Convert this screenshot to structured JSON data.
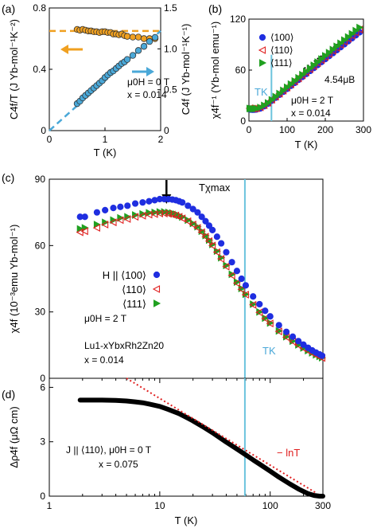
{
  "chart_data": [
    {
      "panel_label": "(a)",
      "type": "scatter",
      "xlabel": "T (K)",
      "ylabel_left": "C4f/T (J Yb-mol⁻¹K⁻²)",
      "ylabel_right": "C4f (J Yb-mol⁻¹K⁻¹)",
      "xlim": [
        0,
        2
      ],
      "ylim_left": [
        0,
        0.8
      ],
      "ylim_right": [
        0,
        1.5
      ],
      "xticks": [
        "0",
        "1",
        "2"
      ],
      "yticks_left": [
        "0",
        "0.4",
        "0.8"
      ],
      "yticks_right": [
        "0",
        "0.5",
        "1.0",
        "1.5"
      ],
      "annotations": [
        "μ0H = 0 T",
        "x = 0.014"
      ],
      "series": [
        {
          "axis": "left",
          "color": "#f0a020",
          "x": [
            0.5,
            0.55,
            0.6,
            0.65,
            0.7,
            0.75,
            0.8,
            0.85,
            0.9,
            0.95,
            1.0,
            1.05,
            1.1,
            1.15,
            1.2,
            1.25,
            1.3,
            1.35,
            1.4,
            1.5,
            1.6,
            1.7,
            1.8,
            1.9
          ],
          "y": [
            0.66,
            0.655,
            0.66,
            0.655,
            0.65,
            0.65,
            0.645,
            0.645,
            0.64,
            0.645,
            0.645,
            0.64,
            0.64,
            0.63,
            0.63,
            0.625,
            0.63,
            0.62,
            0.615,
            0.61,
            0.61,
            0.6,
            0.6,
            0.6
          ]
        },
        {
          "axis": "right",
          "color": "#4aa8d8",
          "x": [
            0.5,
            0.55,
            0.6,
            0.65,
            0.7,
            0.75,
            0.8,
            0.85,
            0.9,
            0.95,
            1.0,
            1.05,
            1.1,
            1.15,
            1.2,
            1.25,
            1.3,
            1.35,
            1.4,
            1.5,
            1.6,
            1.7,
            1.8,
            1.9
          ],
          "y": [
            0.33,
            0.36,
            0.4,
            0.43,
            0.46,
            0.49,
            0.52,
            0.55,
            0.58,
            0.61,
            0.65,
            0.68,
            0.71,
            0.73,
            0.76,
            0.79,
            0.82,
            0.84,
            0.87,
            0.92,
            0.98,
            1.03,
            1.09,
            1.14
          ]
        }
      ],
      "fit_lines": [
        {
          "axis": "left",
          "style": "dashed",
          "color": "#f0a020",
          "x": [
            0,
            2
          ],
          "y": [
            0.65,
            0.65
          ]
        },
        {
          "axis": "right",
          "style": "dashed",
          "color": "#4aa8d8",
          "x": [
            0,
            2
          ],
          "y": [
            0,
            1.22
          ]
        }
      ]
    },
    {
      "panel_label": "(b)",
      "type": "scatter",
      "xlabel": "T (K)",
      "ylabel": "χ4f⁻¹ (Yb-mol emu⁻¹)",
      "xlim": [
        0,
        300
      ],
      "ylim": [
        0,
        120
      ],
      "xticks": [
        "0",
        "100",
        "200",
        "300"
      ],
      "yticks": [
        "0",
        "60",
        "120"
      ],
      "vline": {
        "x": 59,
        "label": "TK",
        "color": "#6cc4dd"
      },
      "annotations": [
        "4.54μB",
        "μ0H = 2 T",
        "x = 0.014"
      ],
      "legend": [
        "⟨100⟩",
        "⟨110⟩",
        "⟨111⟩"
      ],
      "series": [
        {
          "name": "⟨100⟩",
          "color": "#1f2ee0",
          "marker": "circle",
          "x": [
            2,
            5,
            10,
            15,
            20,
            30,
            40,
            50,
            60,
            70,
            80,
            90,
            100,
            110,
            120,
            130,
            140,
            150,
            160,
            170,
            180,
            190,
            200,
            210,
            220,
            230,
            240,
            250,
            260,
            270,
            280,
            290
          ],
          "y": [
            13.7,
            13.5,
            13.3,
            13.4,
            13.7,
            14.9,
            17.5,
            20.5,
            24,
            27.5,
            31,
            34.5,
            38,
            41.5,
            45,
            48.5,
            52,
            55.5,
            59,
            62.5,
            66,
            69.5,
            73,
            76.5,
            80,
            83.5,
            87,
            90.5,
            94,
            97.5,
            101,
            104.5
          ]
        },
        {
          "name": "⟨110⟩",
          "color": "#e02020",
          "marker": "triangle-left",
          "x": [
            2,
            5,
            10,
            15,
            20,
            30,
            40,
            50,
            60,
            70,
            80,
            90,
            100,
            110,
            120,
            130,
            140,
            150,
            160,
            170,
            180,
            190,
            200,
            210,
            220,
            230,
            240,
            250,
            260,
            270,
            280,
            290
          ],
          "y": [
            15,
            14.8,
            14.6,
            14.7,
            15,
            16.2,
            18.5,
            21.5,
            25,
            28.6,
            32.2,
            35.8,
            39.4,
            43,
            46.6,
            50.2,
            53.8,
            57.4,
            61,
            64.6,
            68.2,
            71.8,
            75.4,
            79,
            82.6,
            86.2,
            89.8,
            93.4,
            97,
            100.6,
            104.2,
            107.8
          ]
        },
        {
          "name": "⟨111⟩",
          "color": "#20a020",
          "marker": "triangle-right",
          "x": [
            2,
            5,
            10,
            15,
            20,
            30,
            40,
            50,
            60,
            70,
            80,
            90,
            100,
            110,
            120,
            130,
            140,
            150,
            160,
            170,
            180,
            190,
            200,
            210,
            220,
            230,
            240,
            250,
            260,
            270,
            280,
            290
          ],
          "y": [
            14.8,
            14.6,
            14.4,
            14.5,
            14.8,
            16,
            18.4,
            21.4,
            25,
            28.7,
            32.4,
            36.1,
            39.8,
            43.5,
            47.2,
            50.9,
            54.6,
            58.3,
            62,
            65.7,
            69.4,
            73.1,
            76.8,
            80.5,
            84.2,
            87.9,
            91.6,
            95.3,
            99,
            102.7,
            106.4,
            110.1
          ]
        }
      ]
    },
    {
      "panel_label": "(c)",
      "type": "scatter",
      "xlabel": "",
      "ylabel": "χ4f (10⁻³emu Yb-mol⁻¹)",
      "xscale": "log",
      "xlim": [
        1,
        300
      ],
      "ylim": [
        0,
        90
      ],
      "yticks": [
        "0",
        "30",
        "60",
        "90"
      ],
      "vline": {
        "x": 59,
        "label": "TK",
        "color": "#6cc4dd"
      },
      "arrow_label": "Tχmax",
      "arrow_x": 11.5,
      "annotations": [
        "μ0H = 2 T",
        "Lu1-xYbxRh2Zn20",
        "x = 0.014"
      ],
      "legend": [
        "H || ⟨100⟩",
        "⟨110⟩",
        "⟨111⟩"
      ],
      "series": [
        {
          "name": "H || ⟨100⟩",
          "color": "#1f2ee0",
          "marker": "circle",
          "x": [
            1.9,
            2.1,
            2.7,
            3.2,
            3.8,
            4.4,
            5.1,
            6,
            7,
            8,
            9,
            10,
            11,
            12,
            13,
            14,
            15,
            16,
            18,
            20,
            22,
            24,
            26,
            28,
            30,
            33,
            36,
            40,
            45,
            50,
            55,
            60,
            70,
            80,
            90,
            100,
            120,
            140,
            160,
            180,
            200,
            220,
            240,
            260,
            280,
            295
          ],
          "y": [
            73,
            73,
            75,
            76,
            77,
            77.5,
            78,
            79,
            79.5,
            80,
            80.5,
            81,
            81,
            81,
            80.8,
            80.5,
            80,
            79.5,
            78,
            76.5,
            75,
            73,
            71,
            69,
            67,
            64,
            61,
            57,
            52.5,
            48.5,
            45,
            42,
            37,
            33.5,
            30.5,
            28,
            24,
            21,
            18.8,
            16.8,
            15.2,
            13.8,
            12.6,
            11.6,
            10.8,
            10.2
          ]
        },
        {
          "name": "⟨110⟩",
          "color": "#e02020",
          "marker": "triangle-left",
          "x": [
            1.9,
            2.1,
            2.7,
            3.2,
            3.8,
            4.4,
            5.1,
            6,
            7,
            8,
            9,
            10,
            11,
            12,
            13,
            14,
            15,
            16,
            18,
            20,
            22,
            24,
            26,
            28,
            30,
            33,
            36,
            40,
            45,
            50,
            55,
            60,
            70,
            80,
            90,
            100,
            120,
            140,
            160,
            180,
            200,
            220,
            240,
            260,
            280,
            295
          ],
          "y": [
            66,
            66.5,
            68,
            69.5,
            70.5,
            71.5,
            72,
            73,
            73.5,
            74,
            74.2,
            74.5,
            74.5,
            74.3,
            74,
            73.6,
            73,
            72.3,
            71,
            69.5,
            68,
            66,
            64,
            62,
            60,
            57,
            54,
            50.5,
            46.5,
            43,
            40.2,
            37.8,
            33.2,
            29.8,
            27,
            24.8,
            21.2,
            18.6,
            16.6,
            15,
            13.6,
            12.4,
            11.4,
            10.5,
            9.8,
            9.2
          ]
        },
        {
          "name": "⟨111⟩",
          "color": "#20a020",
          "marker": "triangle-right",
          "x": [
            1.9,
            2.1,
            2.7,
            3.2,
            3.8,
            4.4,
            5.1,
            6,
            7,
            8,
            9,
            10,
            11,
            12,
            13,
            14,
            15,
            16,
            18,
            20,
            22,
            24,
            26,
            28,
            30,
            33,
            36,
            40,
            45,
            50,
            55,
            60,
            70,
            80,
            90,
            100,
            120,
            140,
            160,
            180,
            200,
            220,
            240,
            260,
            280,
            295
          ],
          "y": [
            67.5,
            68,
            69.5,
            70.5,
            71.5,
            72.5,
            73,
            73.8,
            74.3,
            74.8,
            75,
            75.2,
            75.2,
            75,
            74.7,
            74.2,
            73.6,
            72.9,
            71.5,
            70,
            68.5,
            66.5,
            64.5,
            62.5,
            60.5,
            57.5,
            54.5,
            51,
            47,
            43.5,
            40.6,
            38,
            33.5,
            30,
            27.2,
            25,
            21.4,
            18.8,
            16.8,
            15.1,
            13.7,
            12.5,
            11.5,
            10.6,
            9.9,
            9.3
          ]
        }
      ]
    },
    {
      "panel_label": "(d)",
      "type": "line",
      "xlabel": "T (K)",
      "ylabel": "Δρ4f (μΩ cm)",
      "xscale": "log",
      "xlim": [
        1,
        300
      ],
      "ylim": [
        0,
        6.5
      ],
      "xticks": [
        "1",
        "10",
        "100",
        "300"
      ],
      "yticks": [
        "0",
        "3",
        "6"
      ],
      "vline": {
        "x": 59,
        "color": "#6cc4dd"
      },
      "annotations": [
        "J || ⟨110⟩,  μ0H = 0 T",
        "x = 0.075",
        "− lnT"
      ],
      "series": [
        {
          "name": "Δρ4f",
          "color": "#000000",
          "x": [
            1.9,
            2.5,
            3,
            4,
            5,
            6,
            7,
            8,
            10,
            12,
            15,
            18,
            20,
            25,
            30,
            40,
            50,
            60,
            70,
            80,
            100,
            120,
            150,
            180,
            200,
            220,
            250,
            280,
            300
          ],
          "y": [
            5.3,
            5.3,
            5.3,
            5.28,
            5.25,
            5.2,
            5.15,
            5.08,
            4.95,
            4.78,
            4.55,
            4.3,
            4.15,
            3.8,
            3.5,
            2.98,
            2.6,
            2.28,
            2.0,
            1.77,
            1.38,
            1.05,
            0.68,
            0.4,
            0.26,
            0.14,
            0.04,
            0.0,
            0.0
          ]
        }
      ],
      "fit_lines": [
        {
          "style": "dotted",
          "color": "#e02020",
          "label": "− lnT",
          "x": [
            5,
            260
          ],
          "y": [
            6.5,
            0.18
          ]
        }
      ]
    }
  ]
}
